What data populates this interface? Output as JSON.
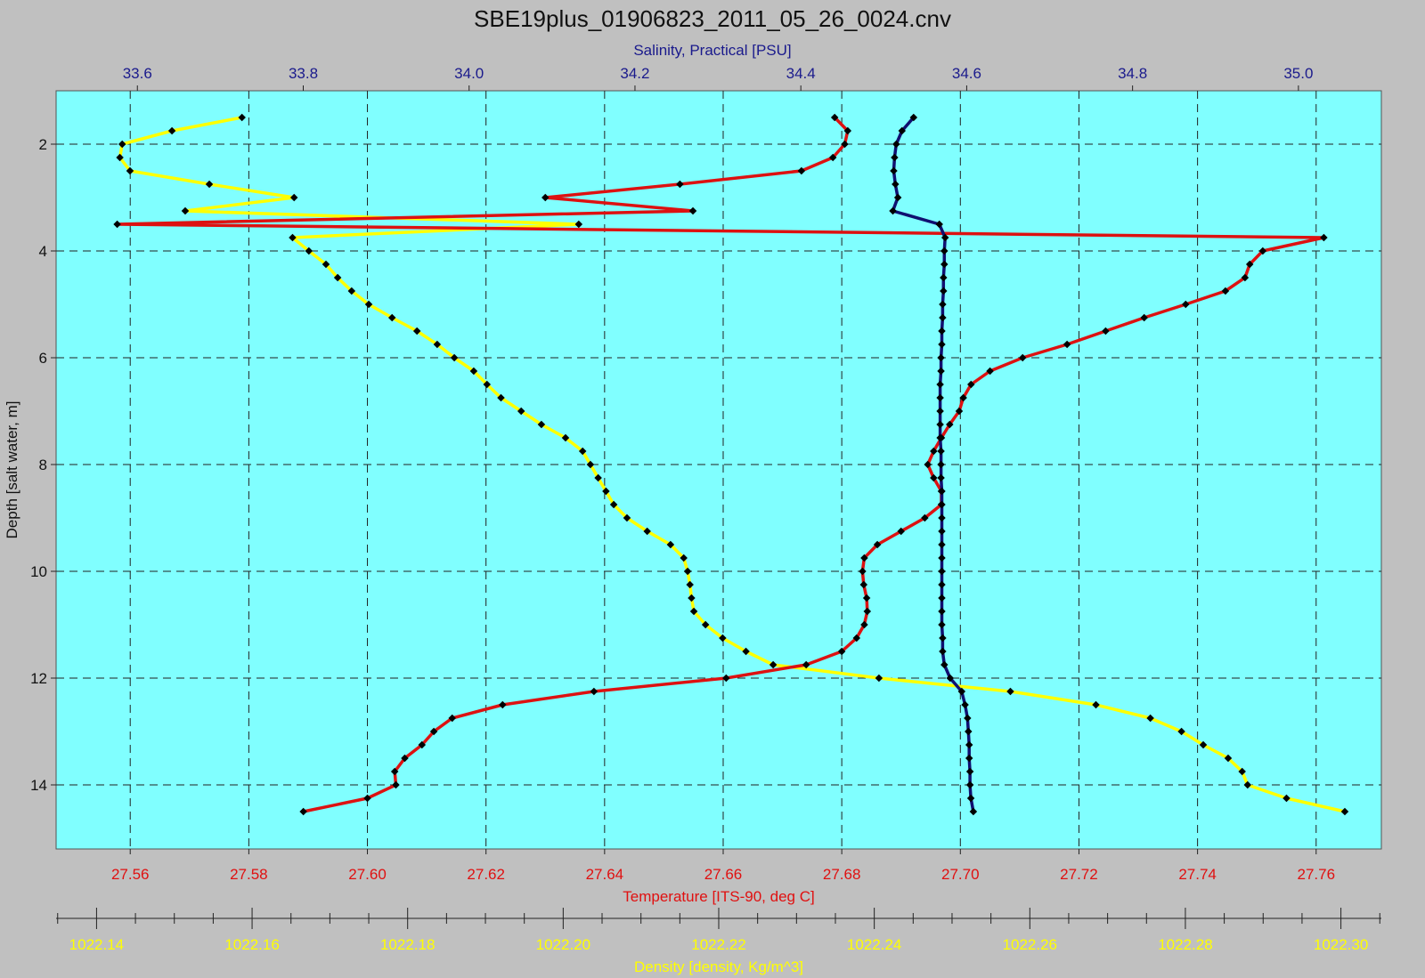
{
  "chart_data": {
    "type": "line",
    "title": "SBE19plus_01906823_2011_05_26_0024.cnv",
    "grid": true,
    "colors": {
      "background": "#c0c0c0",
      "plot_area": "#80ffff",
      "salinity_axis": "#1a1a8c",
      "temperature_axis": "#e01010",
      "density_axis": "#ffff00",
      "salinity_line": "#101070",
      "temperature_line": "#dd1111",
      "density_line": "#ffff00",
      "markers": "#000000"
    },
    "y_axis": {
      "label": "Depth [salt water, m]",
      "range": [
        1.0,
        15.2
      ],
      "inverted": true,
      "ticks": [
        "2",
        "4",
        "6",
        "8",
        "10",
        "12",
        "14"
      ],
      "tick_values": [
        2,
        4,
        6,
        8,
        10,
        12,
        14
      ]
    },
    "top_axis": {
      "label": "Salinity, Practical [PSU]",
      "range": [
        33.502,
        35.1
      ],
      "ticks": [
        "33.6",
        "33.8",
        "34.0",
        "34.2",
        "34.4",
        "34.6",
        "34.8",
        "35.0"
      ],
      "tick_values": [
        33.6,
        33.8,
        34.0,
        34.2,
        34.4,
        34.6,
        34.8,
        35.0
      ]
    },
    "bottom_axis": {
      "label": "Temperature [ITS-90, deg C]",
      "range": [
        27.5475,
        27.771
      ],
      "ticks": [
        "27.56",
        "27.58",
        "27.60",
        "27.62",
        "27.64",
        "27.66",
        "27.68",
        "27.70",
        "27.72",
        "27.74",
        "27.76"
      ],
      "tick_values": [
        27.56,
        27.58,
        27.6,
        27.62,
        27.64,
        27.66,
        27.68,
        27.7,
        27.72,
        27.74,
        27.76
      ]
    },
    "density_axis": {
      "label": "Density [density, Kg/m^3]",
      "range": [
        1022.1348,
        1022.3052
      ],
      "ticks": [
        "1022.14",
        "1022.16",
        "1022.18",
        "1022.20",
        "1022.22",
        "1022.24",
        "1022.26",
        "1022.28",
        "1022.30"
      ],
      "tick_values": [
        1022.14,
        1022.16,
        1022.18,
        1022.2,
        1022.22,
        1022.24,
        1022.26,
        1022.28,
        1022.3
      ]
    },
    "series": [
      {
        "axis": "density_axis",
        "points": [
          [
            1022.1587,
            1.5
          ],
          [
            1022.1497,
            1.75
          ],
          [
            1022.1433,
            2.0
          ],
          [
            1022.143,
            2.25
          ],
          [
            1022.1443,
            2.5
          ],
          [
            1022.1545,
            2.75
          ],
          [
            1022.1654,
            3.0
          ],
          [
            1022.1514,
            3.25
          ],
          [
            1022.202,
            3.5
          ],
          [
            1022.1652,
            3.75
          ],
          [
            1022.1673,
            4.0
          ],
          [
            1022.1695,
            4.25
          ],
          [
            1022.171,
            4.5
          ],
          [
            1022.1728,
            4.75
          ],
          [
            1022.175,
            5.0
          ],
          [
            1022.178,
            5.25
          ],
          [
            1022.1812,
            5.5
          ],
          [
            1022.1838,
            5.75
          ],
          [
            1022.186,
            6.0
          ],
          [
            1022.1885,
            6.25
          ],
          [
            1022.1902,
            6.5
          ],
          [
            1022.192,
            6.75
          ],
          [
            1022.1946,
            7.0
          ],
          [
            1022.1972,
            7.25
          ],
          [
            1022.2003,
            7.5
          ],
          [
            1022.2025,
            7.75
          ],
          [
            1022.2035,
            8.0
          ],
          [
            1022.2045,
            8.25
          ],
          [
            1022.2055,
            8.5
          ],
          [
            1022.2065,
            8.75
          ],
          [
            1022.2082,
            9.0
          ],
          [
            1022.2108,
            9.25
          ],
          [
            1022.2138,
            9.5
          ],
          [
            1022.2155,
            9.75
          ],
          [
            1022.216,
            10.0
          ],
          [
            1022.2163,
            10.25
          ],
          [
            1022.2165,
            10.5
          ],
          [
            1022.2168,
            10.75
          ],
          [
            1022.2183,
            11.0
          ],
          [
            1022.2205,
            11.25
          ],
          [
            1022.2235,
            11.5
          ],
          [
            1022.227,
            11.75
          ],
          [
            1022.2406,
            12.0
          ],
          [
            1022.2575,
            12.25
          ],
          [
            1022.2685,
            12.5
          ],
          [
            1022.2755,
            12.75
          ],
          [
            1022.2795,
            13.0
          ],
          [
            1022.2823,
            13.25
          ],
          [
            1022.2855,
            13.5
          ],
          [
            1022.2873,
            13.75
          ],
          [
            1022.288,
            14.0
          ],
          [
            1022.293,
            14.25
          ],
          [
            1022.3005,
            14.5
          ]
        ]
      },
      {
        "axis": "bottom_axis",
        "points": [
          [
            27.6788,
            1.5
          ],
          [
            27.681,
            1.75
          ],
          [
            27.6805,
            2.0
          ],
          [
            27.6785,
            2.25
          ],
          [
            27.6732,
            2.5
          ],
          [
            27.6527,
            2.75
          ],
          [
            27.63,
            3.0
          ],
          [
            27.6549,
            3.25
          ],
          [
            27.5578,
            3.5
          ],
          [
            27.7613,
            3.75
          ],
          [
            27.751,
            4.0
          ],
          [
            27.7488,
            4.25
          ],
          [
            27.748,
            4.5
          ],
          [
            27.7447,
            4.75
          ],
          [
            27.738,
            5.0
          ],
          [
            27.731,
            5.25
          ],
          [
            27.7245,
            5.5
          ],
          [
            27.718,
            5.75
          ],
          [
            27.7105,
            6.0
          ],
          [
            27.705,
            6.25
          ],
          [
            27.7018,
            6.5
          ],
          [
            27.7005,
            6.75
          ],
          [
            27.6998,
            7.0
          ],
          [
            27.6982,
            7.25
          ],
          [
            27.6968,
            7.5
          ],
          [
            27.6955,
            7.75
          ],
          [
            27.6945,
            8.0
          ],
          [
            27.6955,
            8.25
          ],
          [
            27.6968,
            8.5
          ],
          [
            27.6968,
            8.75
          ],
          [
            27.694,
            9.0
          ],
          [
            27.69,
            9.25
          ],
          [
            27.686,
            9.5
          ],
          [
            27.6838,
            9.75
          ],
          [
            27.6835,
            10.0
          ],
          [
            27.6837,
            10.25
          ],
          [
            27.6842,
            10.5
          ],
          [
            27.6843,
            10.75
          ],
          [
            27.6838,
            11.0
          ],
          [
            27.6825,
            11.25
          ],
          [
            27.68,
            11.5
          ],
          [
            27.674,
            11.75
          ],
          [
            27.6605,
            12.0
          ],
          [
            27.6382,
            12.25
          ],
          [
            27.6228,
            12.5
          ],
          [
            27.6143,
            12.75
          ],
          [
            27.6112,
            13.0
          ],
          [
            27.6092,
            13.25
          ],
          [
            27.6063,
            13.5
          ],
          [
            27.6046,
            13.75
          ],
          [
            27.6048,
            14.0
          ],
          [
            27.6,
            14.25
          ],
          [
            27.5892,
            14.5
          ]
        ]
      },
      {
        "axis": "top_axis",
        "points": [
          [
            34.536,
            1.5
          ],
          [
            34.522,
            1.75
          ],
          [
            34.515,
            2.0
          ],
          [
            34.513,
            2.25
          ],
          [
            34.512,
            2.5
          ],
          [
            34.514,
            2.75
          ],
          [
            34.517,
            3.0
          ],
          [
            34.511,
            3.25
          ],
          [
            34.567,
            3.5
          ],
          [
            34.574,
            3.75
          ],
          [
            34.573,
            4.0
          ],
          [
            34.573,
            4.25
          ],
          [
            34.572,
            4.5
          ],
          [
            34.572,
            4.75
          ],
          [
            34.571,
            5.0
          ],
          [
            34.571,
            5.25
          ],
          [
            34.57,
            5.5
          ],
          [
            34.57,
            5.75
          ],
          [
            34.569,
            6.0
          ],
          [
            34.569,
            6.25
          ],
          [
            34.568,
            6.5
          ],
          [
            34.568,
            6.75
          ],
          [
            34.568,
            7.0
          ],
          [
            34.568,
            7.25
          ],
          [
            34.568,
            7.5
          ],
          [
            34.569,
            7.75
          ],
          [
            34.569,
            8.0
          ],
          [
            34.569,
            8.25
          ],
          [
            34.57,
            8.5
          ],
          [
            34.57,
            8.75
          ],
          [
            34.57,
            9.0
          ],
          [
            34.57,
            9.25
          ],
          [
            34.57,
            9.5
          ],
          [
            34.57,
            9.75
          ],
          [
            34.57,
            10.0
          ],
          [
            34.57,
            10.25
          ],
          [
            34.57,
            10.5
          ],
          [
            34.57,
            10.75
          ],
          [
            34.57,
            11.0
          ],
          [
            34.571,
            11.25
          ],
          [
            34.571,
            11.5
          ],
          [
            34.573,
            11.75
          ],
          [
            34.58,
            12.0
          ],
          [
            34.594,
            12.25
          ],
          [
            34.598,
            12.5
          ],
          [
            34.601,
            12.75
          ],
          [
            34.602,
            13.0
          ],
          [
            34.603,
            13.25
          ],
          [
            34.603,
            13.5
          ],
          [
            34.604,
            13.75
          ],
          [
            34.604,
            14.0
          ],
          [
            34.605,
            14.25
          ],
          [
            34.608,
            14.5
          ]
        ]
      }
    ]
  }
}
